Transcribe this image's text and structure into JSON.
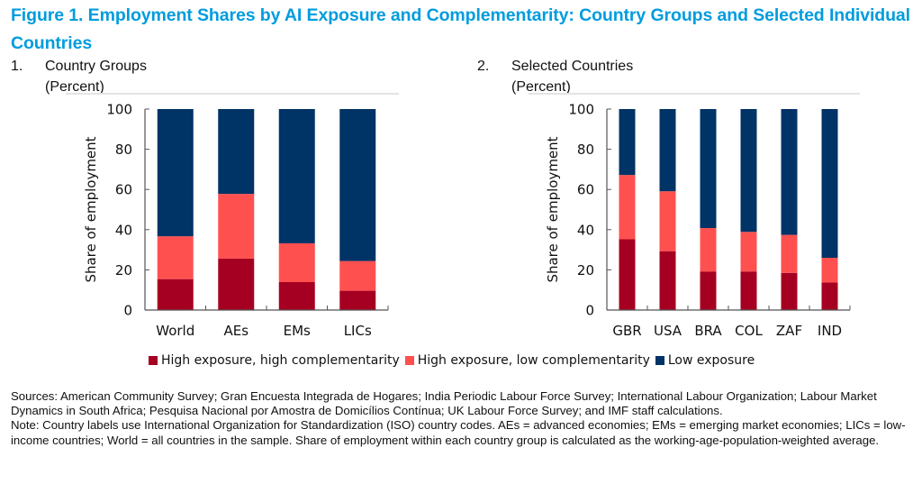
{
  "figure": {
    "title": "Figure 1.  Employment Shares by AI Exposure and Complementarity: Country Groups and Selected Individual Countries"
  },
  "panels": [
    {
      "number": "1.",
      "title": "Country Groups",
      "unit": "(Percent)"
    },
    {
      "number": "2.",
      "title": "Selected Countries",
      "unit": "(Percent)"
    }
  ],
  "colors": {
    "high_exposure_high_complementarity": "#A50021",
    "high_exposure_low_complementarity": "#FF5050",
    "low_exposure": "#003366",
    "title": "#009CDE"
  },
  "legend": [
    {
      "label": "High exposure, high complementarity",
      "color": "#A50021"
    },
    {
      "label": "High exposure, low complementarity",
      "color": "#FF5050"
    },
    {
      "label": "Low exposure",
      "color": "#003366"
    }
  ],
  "chart_data": [
    {
      "type": "bar",
      "stacked": true,
      "title": "Country Groups",
      "subtitle": "(Percent)",
      "xlabel": "",
      "ylabel": "Share of employment",
      "ylim": [
        0,
        100
      ],
      "yticks": [
        0,
        20,
        40,
        60,
        80,
        100
      ],
      "grid": false,
      "legend_position": "bottom",
      "categories": [
        "World",
        "AEs",
        "EMs",
        "LICs"
      ],
      "series": [
        {
          "name": "High exposure, high complementarity",
          "color": "#A50021",
          "values": [
            15.4,
            25.6,
            13.9,
            9.6
          ]
        },
        {
          "name": "High exposure, low complementarity",
          "color": "#FF5050",
          "values": [
            21.3,
            32.2,
            19.3,
            14.8
          ]
        },
        {
          "name": "Low exposure",
          "color": "#003366",
          "values": [
            63.3,
            42.2,
            66.8,
            75.6
          ]
        }
      ]
    },
    {
      "type": "bar",
      "stacked": true,
      "title": "Selected Countries",
      "subtitle": "(Percent)",
      "xlabel": "",
      "ylabel": "Share of employment",
      "ylim": [
        0,
        100
      ],
      "yticks": [
        0,
        20,
        40,
        60,
        80,
        100
      ],
      "grid": false,
      "legend_position": "bottom",
      "categories": [
        "GBR",
        "USA",
        "BRA",
        "COL",
        "ZAF",
        "IND"
      ],
      "series": [
        {
          "name": "High exposure, high complementarity",
          "color": "#A50021",
          "values": [
            35.2,
            29.3,
            19.2,
            19.2,
            18.5,
            13.7
          ]
        },
        {
          "name": "High exposure, low complementarity",
          "color": "#FF5050",
          "values": [
            32.0,
            29.8,
            21.6,
            19.7,
            18.9,
            12.3
          ]
        },
        {
          "name": "Low exposure",
          "color": "#003366",
          "values": [
            32.8,
            40.9,
            59.2,
            61.1,
            62.6,
            74.0
          ]
        }
      ]
    }
  ],
  "notes": {
    "sources": "Sources: American Community Survey; Gran Encuesta Integrada de Hogares; India Periodic Labour Force Survey; International Labour Organization; Labour Market Dynamics in South Africa; Pesquisa Nacional por Amostra de Domicílios Contínua; UK Labour Force Survey; and IMF staff calculations.",
    "note": "Note: Country labels use International Organization for Standardization (ISO) country codes. AEs = advanced economies; EMs = emerging market economies; LICs = low-income countries; World = all countries in the sample. Share of employment within each country group is calculated as the working-age-population-weighted average."
  }
}
